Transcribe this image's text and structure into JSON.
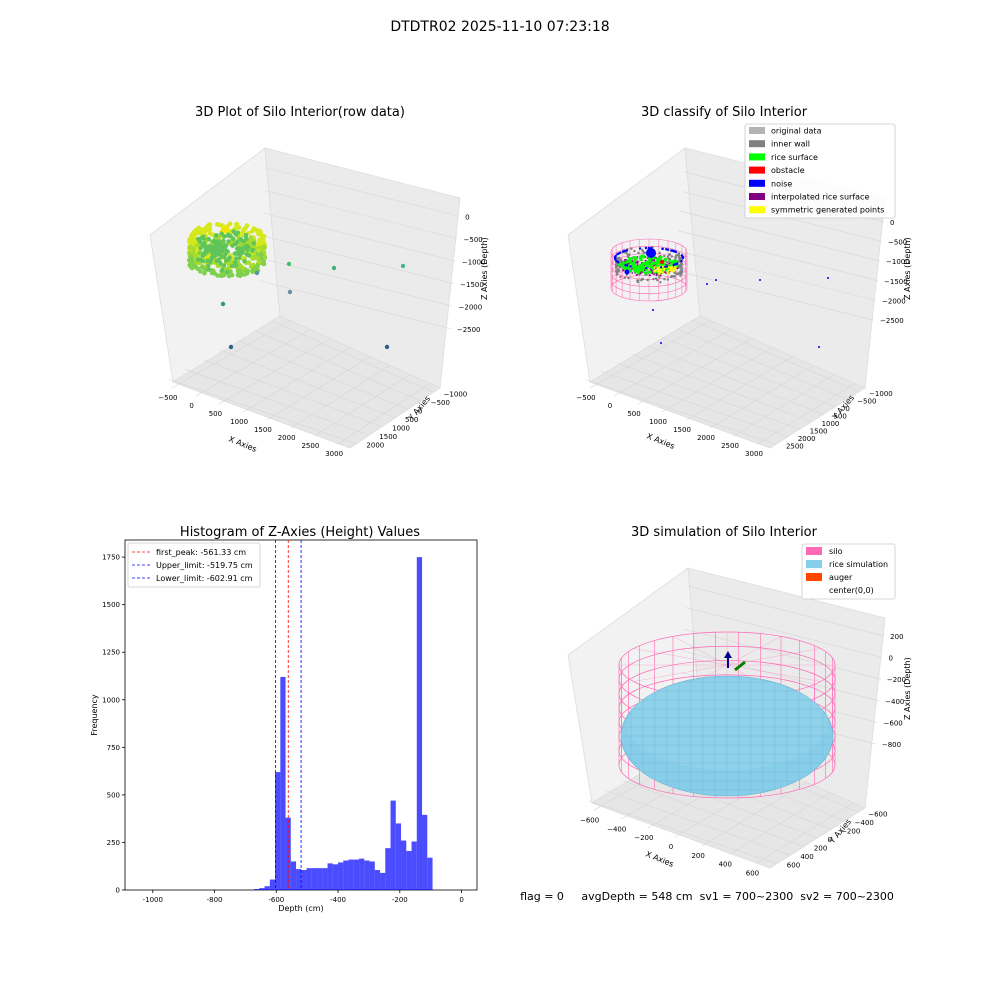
{
  "suptitle": "DTDTR02 2025-11-10 07:23:18",
  "status_text": "flag = 0     avgDepth = 548 cm  sv1 = 700~2300  sv2 = 700~2300",
  "colors": {
    "original": "#b3b3b3",
    "inner_wall": "#808080",
    "rice_surface": "#00ff00",
    "obstacle": "#ff0000",
    "noise": "#0000ff",
    "interpolated": "#800080",
    "symmetric": "#ffff00",
    "silo": "#ff69b4",
    "rice_sim": "#87ceeb",
    "auger": "#ff4500",
    "hist": "#0000ff"
  },
  "chart_data": [
    {
      "type": "scatter3d",
      "title": "3D Plot of Silo Interior(row data)",
      "xlabel": "X Axies",
      "ylabel": "Y Axies",
      "zlabel": "Z Axies (Depth)",
      "xticks": [
        "−500",
        "0",
        "500",
        "1000",
        "1500",
        "2000",
        "2500",
        "3000"
      ],
      "yticks": [
        "−1000",
        "−500",
        "0",
        "500",
        "1000",
        "1500",
        "2000"
      ],
      "zticks": [
        "0",
        "−500",
        "−1000",
        "−1500",
        "−2000",
        "−2500"
      ],
      "xlim": [
        -600,
        3200
      ],
      "ylim": [
        -1100,
        2100
      ],
      "zlim": [
        -2700,
        100
      ]
    },
    {
      "type": "scatter3d",
      "title": "3D classify of Silo Interior",
      "xlabel": "X Axies",
      "ylabel": "Y Axies",
      "zlabel": "Z Axies (Depth)",
      "xticks": [
        "−500",
        "0",
        "500",
        "1000",
        "1500",
        "2000",
        "2500",
        "3000"
      ],
      "yticks": [
        "−1000",
        "−500",
        "0",
        "500",
        "1000",
        "1500",
        "2000",
        "2500"
      ],
      "zticks": [
        "0",
        "−500",
        "−1000",
        "−1500",
        "−2000",
        "−2500"
      ],
      "legend": [
        "original data",
        "inner wall",
        "rice surface",
        "obstacle",
        "noise",
        "interpolated rice surface",
        "symmetric generated points"
      ],
      "legend_position": "top-right"
    },
    {
      "type": "histogram",
      "title": "Histogram of Z-Axies (Height) Values",
      "xlabel": "Depth (cm)",
      "ylabel": "Frequency",
      "xlim": [
        -1090,
        50
      ],
      "ylim": [
        0,
        1840
      ],
      "xticks": [
        -1000,
        -800,
        -600,
        -400,
        -200,
        0
      ],
      "yticks": [
        0,
        250,
        500,
        750,
        1000,
        1250,
        1500,
        1750
      ],
      "bin_width": 17,
      "bins": [
        {
          "x0": -672,
          "count": 5
        },
        {
          "x0": -655,
          "count": 10
        },
        {
          "x0": -638,
          "count": 20
        },
        {
          "x0": -621,
          "count": 55
        },
        {
          "x0": -604,
          "count": 620
        },
        {
          "x0": -587,
          "count": 1120
        },
        {
          "x0": -570,
          "count": 380
        },
        {
          "x0": -553,
          "count": 150
        },
        {
          "x0": -536,
          "count": 110
        },
        {
          "x0": -519,
          "count": 105
        },
        {
          "x0": -502,
          "count": 115
        },
        {
          "x0": -485,
          "count": 115
        },
        {
          "x0": -468,
          "count": 115
        },
        {
          "x0": -451,
          "count": 115
        },
        {
          "x0": -434,
          "count": 140
        },
        {
          "x0": -417,
          "count": 135
        },
        {
          "x0": -400,
          "count": 145
        },
        {
          "x0": -383,
          "count": 155
        },
        {
          "x0": -366,
          "count": 160
        },
        {
          "x0": -349,
          "count": 160
        },
        {
          "x0": -332,
          "count": 165
        },
        {
          "x0": -315,
          "count": 155
        },
        {
          "x0": -298,
          "count": 150
        },
        {
          "x0": -281,
          "count": 105
        },
        {
          "x0": -264,
          "count": 90
        },
        {
          "x0": -247,
          "count": 220
        },
        {
          "x0": -230,
          "count": 470
        },
        {
          "x0": -213,
          "count": 350
        },
        {
          "x0": -196,
          "count": 260
        },
        {
          "x0": -179,
          "count": 205
        },
        {
          "x0": -162,
          "count": 255
        },
        {
          "x0": -145,
          "count": 1750
        },
        {
          "x0": -128,
          "count": 395
        },
        {
          "x0": -111,
          "count": 170
        }
      ],
      "lines": [
        {
          "label": "first_peak: -561.33 cm",
          "x": -561.33,
          "color": "#ff0000"
        },
        {
          "label": "Upper_limit: -519.75 cm",
          "x": -519.75,
          "color": "#0000ff"
        },
        {
          "label": "Lower_limit: -602.91 cm",
          "x": -602.91,
          "color": "#0000ff"
        }
      ],
      "legend_position": "top-left"
    },
    {
      "type": "surface3d",
      "title": "3D simulation of Silo Interior",
      "xlabel": "X Axies",
      "ylabel": "Y Axies",
      "zlabel": "Z Axies (Depth)",
      "xticks": [
        "−600",
        "−400",
        "−200",
        "0",
        "200",
        "400",
        "600"
      ],
      "yticks": [
        "−600",
        "−400",
        "−200",
        "0",
        "200",
        "400",
        "600"
      ],
      "zticks": [
        "200",
        "0",
        "−200",
        "−400",
        "−600",
        "−800"
      ],
      "legend": [
        "silo",
        "rice simulation",
        "auger",
        "center(0,0)"
      ],
      "legend_position": "top-right"
    }
  ]
}
